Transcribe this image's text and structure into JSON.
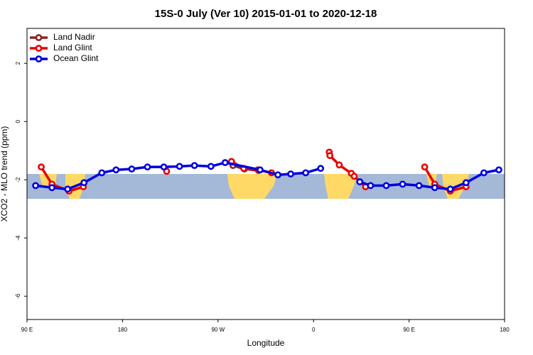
{
  "chart_data": {
    "type": "line",
    "title": "15S-0 July (Ver 10)   2015-01-01 to 2020-12-18",
    "xlabel": "Longitude",
    "ylabel": "XCO2 - MLO trend (ppm)",
    "xlim": [
      90,
      540
    ],
    "ylim": [
      -6.8,
      3.2
    ],
    "xticks": [
      {
        "value": 90,
        "label": "90 E"
      },
      180,
      {
        "value": 270,
        "label": "90 W"
      },
      {
        "value": 360,
        "label": "0"
      },
      {
        "value": 450,
        "label": "90 E"
      },
      {
        "value": 540,
        "label": "180"
      }
    ],
    "yticks": [
      -6,
      -4,
      -2,
      0,
      2
    ],
    "legend": "top-left",
    "series": [
      {
        "name": "Land Nadir",
        "color": "#8b2323",
        "x": [
          284.1,
          294.8,
          308.2
        ],
        "values": [
          -1.51,
          -1.63,
          -1.68
        ]
      },
      {
        "name": "Land Glint",
        "color": "#e80000",
        "x": [
          103.4,
          113.5,
          129.6,
          143.1,
          null,
          221.6,
          null,
          282.7,
          294.2,
          307.6,
          320.4,
          null,
          374.8,
          375.4,
          384.2,
          395.6,
          398.3,
          409.0,
          null,
          464.7,
          474.2,
          488.9,
          503.7
        ],
        "values": [
          -1.56,
          -2.15,
          -2.39,
          -2.24,
          null,
          -1.71,
          null,
          -1.37,
          -1.61,
          -1.66,
          -1.76,
          null,
          -1.05,
          -1.17,
          -1.49,
          -1.78,
          -1.88,
          -2.24,
          null,
          -1.56,
          -2.15,
          -2.39,
          -2.24
        ]
      },
      {
        "name": "Ocean Glint",
        "color": "#0000e0",
        "x": [
          98.1,
          113.5,
          128.3,
          143.7,
          160.5,
          173.9,
          188.7,
          203.5,
          218.9,
          233.7,
          247.8,
          263.3,
          276.7,
          309.6,
          326.4,
          338.5,
          352.6,
          366.7,
          null,
          403.6,
          413.7,
          428.5,
          443.9,
          459.4,
          474.2,
          488.9,
          503.7,
          520.5,
          534.6
        ],
        "values": [
          -2.2,
          -2.27,
          -2.32,
          -2.1,
          -1.76,
          -1.66,
          -1.63,
          -1.56,
          -1.56,
          -1.54,
          -1.51,
          -1.54,
          -1.41,
          -1.66,
          -1.83,
          -1.8,
          -1.76,
          -1.61,
          null,
          -2.07,
          -2.2,
          -2.2,
          -2.15,
          -2.2,
          -2.27,
          -2.32,
          -2.1,
          -1.76,
          -1.66
        ]
      }
    ]
  }
}
